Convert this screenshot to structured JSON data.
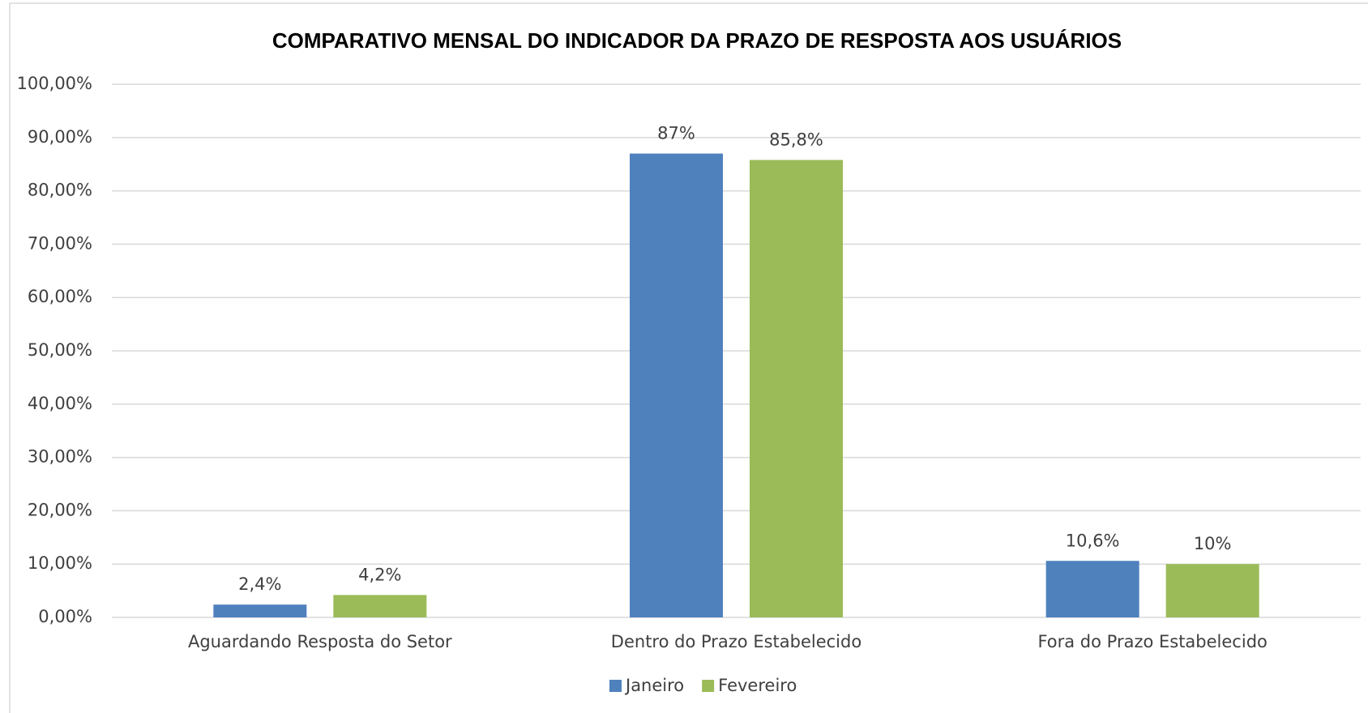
{
  "chart_data": {
    "type": "bar",
    "title": "COMPARATIVO MENSAL DO INDICADOR DA PRAZO DE RESPOSTA AOS USUÁRIOS",
    "categories": [
      "Aguardando Resposta do Setor",
      "Dentro do Prazo Estabelecido",
      "Fora do Prazo Estabelecido"
    ],
    "series": [
      {
        "name": "Janeiro",
        "color": "#4f81bd",
        "values": [
          2.4,
          87,
          10.6
        ],
        "value_labels": [
          "2,4%",
          "87%",
          "10,6%"
        ]
      },
      {
        "name": "Fevereiro",
        "color": "#9bbb59",
        "values": [
          4.2,
          85.8,
          10
        ],
        "value_labels": [
          "4,2%",
          "85,8%",
          "10%"
        ]
      }
    ],
    "ylim": [
      0,
      100
    ],
    "yticks": [
      {
        "value": 0,
        "label": "0,00%"
      },
      {
        "value": 10,
        "label": "10,00%"
      },
      {
        "value": 20,
        "label": "20,00%"
      },
      {
        "value": 30,
        "label": "30,00%"
      },
      {
        "value": 40,
        "label": "40,00%"
      },
      {
        "value": 50,
        "label": "50,00%"
      },
      {
        "value": 60,
        "label": "60,00%"
      },
      {
        "value": 70,
        "label": "70,00%"
      },
      {
        "value": 80,
        "label": "80,00%"
      },
      {
        "value": 90,
        "label": "90,00%"
      },
      {
        "value": 100,
        "label": "100,00%"
      }
    ],
    "grid": true,
    "legend": "bottom"
  }
}
